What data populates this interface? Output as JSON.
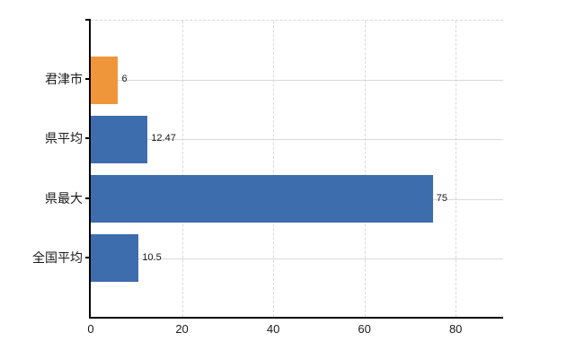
{
  "chart_data": {
    "type": "bar",
    "orientation": "horizontal",
    "title": "",
    "xlabel": "",
    "ylabel": "",
    "categories": [
      "君津市",
      "県平均",
      "県最大",
      "全国平均"
    ],
    "values": [
      6,
      12.47,
      75,
      10.5
    ],
    "value_labels": [
      "6",
      "12.47",
      "75",
      "10.5"
    ],
    "bar_colors": [
      "#f0963a",
      "#3e6dae",
      "#3e6dae",
      "#3e6dae"
    ],
    "highlight_category": "君津市",
    "xlim": [
      0,
      90.4
    ],
    "x_ticks": [
      0,
      20,
      40,
      60,
      80
    ],
    "x_tick_labels": [
      "0",
      "20",
      "40",
      "60",
      "80"
    ],
    "grid": {
      "vertical": "dashed",
      "horizontal": "solid",
      "top_border": "dashed"
    },
    "legend": "none",
    "background": "#ffffff"
  },
  "colors": {
    "bar_blue": "#3e6dae",
    "bar_orange": "#f0963a",
    "gridline": "#d9d9d9",
    "axis": "#000000",
    "text": "#1a1a1a",
    "background": "#ffffff"
  }
}
